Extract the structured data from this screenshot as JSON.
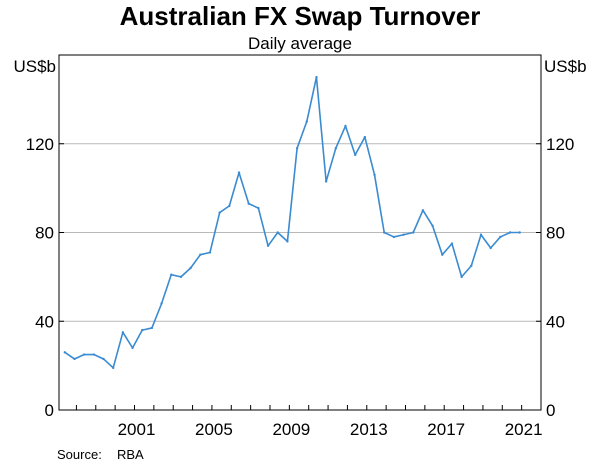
{
  "chart_data": {
    "type": "line",
    "title": "Australian FX Swap Turnover",
    "subtitle": "Daily average",
    "ylabel_left": "US$b",
    "ylabel_right": "US$b",
    "source_label": "Source:",
    "source_value": "RBA",
    "ylim": [
      0,
      160
    ],
    "yticks": [
      0,
      40,
      80,
      120
    ],
    "xlim": [
      1997.1,
      2022.0
    ],
    "xticks": [
      2001,
      2005,
      2009,
      2013,
      2017,
      2021
    ],
    "xtick_labels": [
      "2001",
      "2005",
      "2009",
      "2013",
      "2017",
      "2021"
    ],
    "grid": true,
    "line_color": "#3a8bd1",
    "series": [
      {
        "x": [
          1997.4,
          1997.9,
          1998.4,
          1998.9,
          1999.4,
          1999.9,
          2000.4,
          2000.9,
          2001.4,
          2001.9,
          2002.4,
          2002.9,
          2003.4,
          2003.9,
          2004.4,
          2004.9,
          2005.4,
          2005.9,
          2006.4,
          2006.9,
          2007.4,
          2007.9,
          2008.4,
          2008.9,
          2009.4,
          2009.9,
          2010.4,
          2010.9,
          2011.4,
          2011.9,
          2012.4,
          2012.9,
          2013.4,
          2013.9,
          2014.4,
          2014.9,
          2015.4,
          2015.9,
          2016.4,
          2016.9,
          2017.4,
          2017.9,
          2018.4,
          2018.9,
          2019.4,
          2019.9,
          2020.4,
          2020.9
        ],
        "values": [
          26,
          23,
          25,
          25,
          23,
          19,
          35,
          28,
          36,
          37,
          48,
          61,
          60,
          64,
          70,
          71,
          89,
          92,
          107,
          93,
          91,
          74,
          80,
          76,
          118,
          130,
          150,
          103,
          118,
          128,
          115,
          123,
          106,
          80,
          78,
          79,
          80,
          90,
          83,
          70,
          75,
          60,
          65,
          79,
          73,
          78,
          80,
          80
        ]
      }
    ]
  }
}
